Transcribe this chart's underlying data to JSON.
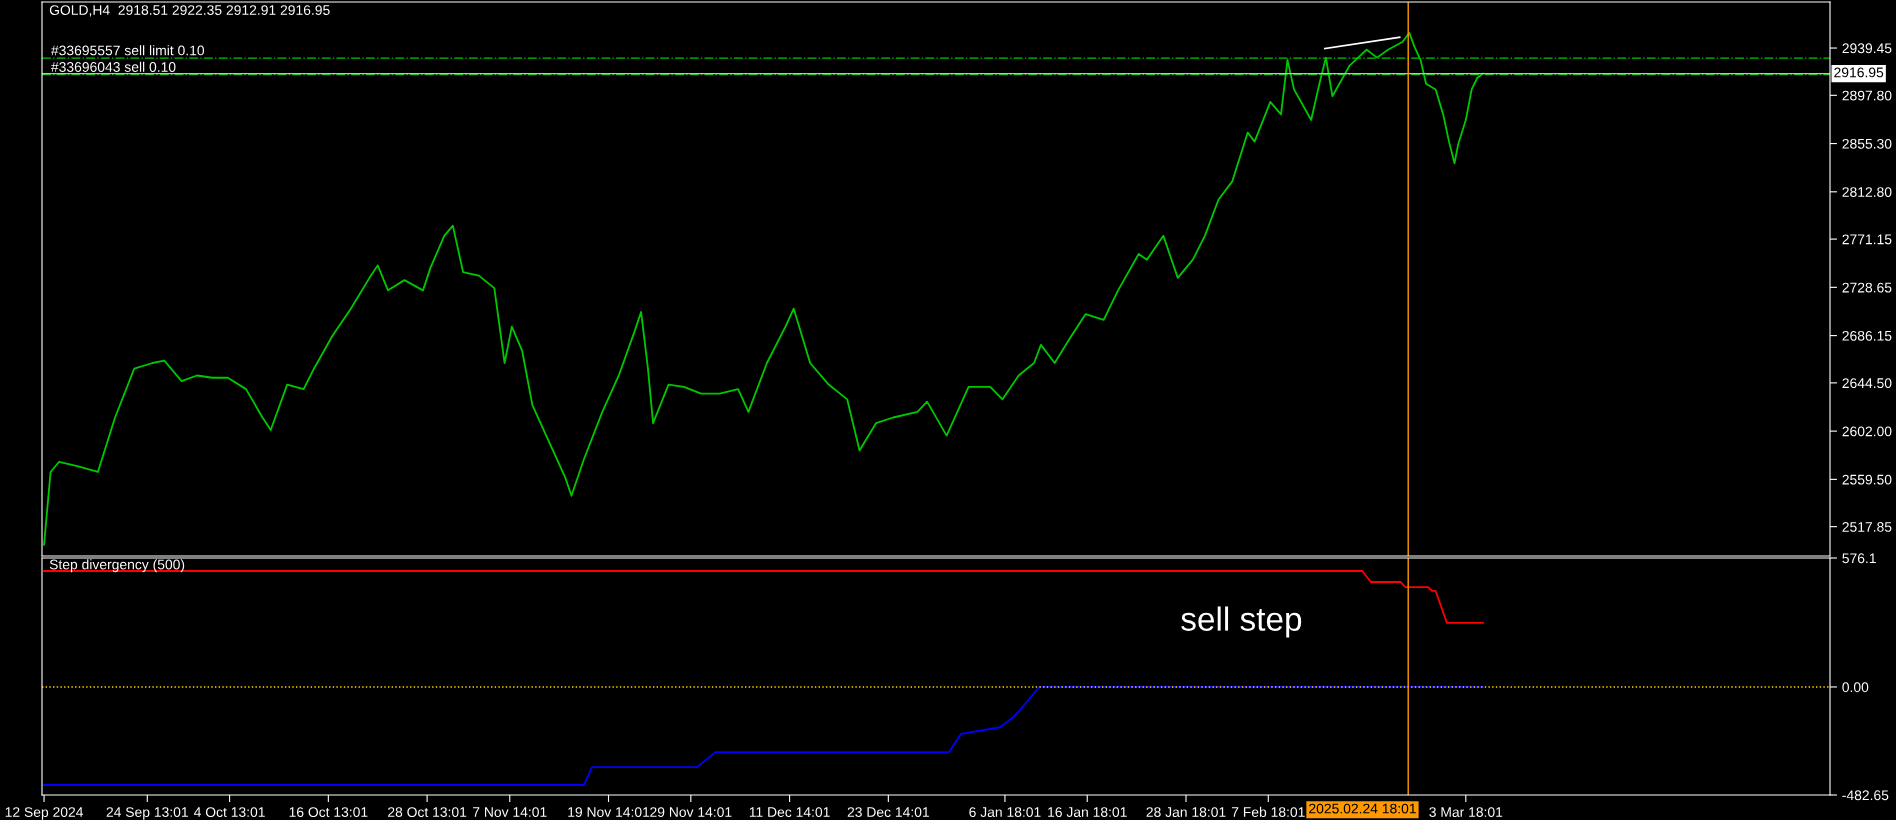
{
  "chart_data": [
    {
      "type": "line",
      "title": "GOLD,H4  2918.51 2922.35 2912.91 2916.95",
      "tick_labels": "y",
      "grid": false,
      "legend": false,
      "xlim": [
        "2024-09-11T18:00",
        "2025-04-17T00:00"
      ],
      "ylim": [
        2492,
        2980
      ],
      "yticks": [
        {
          "value": 2939.45,
          "label": "2939.45"
        },
        {
          "value": 2897.8,
          "label": "2897.80"
        },
        {
          "value": 2855.3,
          "label": "2855.30"
        },
        {
          "value": 2812.8,
          "label": "2812.80"
        },
        {
          "value": 2771.15,
          "label": "2771.15"
        },
        {
          "value": 2728.65,
          "label": "2728.65"
        },
        {
          "value": 2686.15,
          "label": "2686.15"
        },
        {
          "value": 2644.5,
          "label": "2644.50"
        },
        {
          "value": 2602.0,
          "label": "2602.00"
        },
        {
          "value": 2559.5,
          "label": "2559.50"
        },
        {
          "value": 2517.85,
          "label": "2517.85"
        }
      ],
      "series": [
        {
          "color": "#00c800",
          "x": [
            "2024-09-12T00:00",
            "2024-09-12T19:00",
            "2024-09-13T20:00",
            "2024-09-16T04:00",
            "2024-09-18T13:00",
            "2024-09-20T15:00",
            "2024-09-22T23:00",
            "2024-09-25T04:00",
            "2024-09-26T15:00",
            "2024-09-28T17:00",
            "2024-09-30T14:00",
            "2024-10-02T11:00",
            "2024-10-04T08:00",
            "2024-10-06T13:00",
            "2024-10-08T13:00",
            "2024-10-09T13:00",
            "2024-10-11T13:00",
            "2024-10-13T13:00",
            "2024-10-14T19:00",
            "2024-10-17T01:00",
            "2024-10-19T07:00",
            "2024-10-21T13:00",
            "2024-10-22T13:00",
            "2024-10-23T19:00",
            "2024-10-25T19:00",
            "2024-10-28T01:00",
            "2024-10-28T23:00",
            "2024-10-30T15:00",
            "2024-10-31T16:00",
            "2024-11-01T22:00",
            "2024-11-03T20:00",
            "2024-11-05T17:00",
            "2024-11-06T23:00",
            "2024-11-07T20:00",
            "2024-11-09T02:00",
            "2024-11-10T08:00",
            "2024-11-12T08:00",
            "2024-11-14T08:00",
            "2024-11-15T02:00",
            "2024-11-16T14:00",
            "2024-11-18T20:00",
            "2024-11-20T20:00",
            "2024-11-22T17:00",
            "2024-11-23T13:00",
            "2024-11-24T09:00",
            "2024-11-25T00:00",
            "2024-11-26T21:00",
            "2024-11-28T18:00",
            "2024-11-30T20:00",
            "2024-12-03T02:00",
            "2024-12-05T08:00",
            "2024-12-06T14:00",
            "2024-12-08T20:00",
            "2024-12-11T02:00",
            "2024-12-12T02:00",
            "2024-12-14T02:00",
            "2024-12-16T08:00",
            "2024-12-18T14:00",
            "2024-12-20T02:00",
            "2024-12-22T02:00",
            "2024-12-24T04:00",
            "2024-12-27T03:00",
            "2024-12-28T07:00",
            "2024-12-30T16:00",
            "2025-01-02T08:00",
            "2025-01-04T23:00",
            "2025-01-06T11:00",
            "2025-01-08T10:00",
            "2025-01-10T07:00",
            "2025-01-11T03:00",
            "2025-01-12T19:00",
            "2025-01-14T16:00",
            "2025-01-16T13:00",
            "2025-01-18T18:00",
            "2025-01-20T12:00",
            "2025-01-23T00:00",
            "2025-01-24T00:00",
            "2025-01-26T00:00",
            "2025-01-27T18:00",
            "2025-01-29T14:00",
            "2025-01-31T01:00",
            "2025-02-01T17:00",
            "2025-02-03T09:00",
            "2025-02-05T06:00",
            "2025-02-06T02:00",
            "2025-02-08T00:00",
            "2025-02-09T07:00",
            "2025-02-10T02:00",
            "2025-02-10T21:00",
            "2025-02-12T23:00",
            "2025-02-13T23:00",
            "2025-02-14T18:00",
            "2025-02-15T13:00",
            "2025-02-17T15:00",
            "2025-02-19T17:00",
            "2025-02-20T23:00",
            "2025-02-22T07:00",
            "2025-02-24T02:00",
            "2025-02-24T21:00",
            "2025-02-25T13:00",
            "2025-02-26T06:00",
            "2025-02-26T22:00",
            "2025-02-28T02:00",
            "2025-03-01T00:00",
            "2025-03-01T17:00",
            "2025-03-02T09:00",
            "2025-03-02T20:00",
            "2025-03-03T18:00",
            "2025-03-04T11:00",
            "2025-03-05T03:00",
            "2025-03-05T20:00"
          ],
          "values": [
            2502,
            2566,
            2575,
            2571,
            2566,
            2614,
            2657,
            2662,
            2664,
            2646,
            2651,
            2649,
            2649,
            2639,
            2614,
            2603,
            2643,
            2639,
            2657,
            2686,
            2710,
            2737,
            2748,
            2726,
            2735,
            2726,
            2746,
            2774,
            2783,
            2742,
            2739,
            2728,
            2662,
            2694,
            2673,
            2625,
            2593,
            2561,
            2545,
            2577,
            2619,
            2651,
            2689,
            2707,
            2657,
            2609,
            2643,
            2641,
            2635,
            2635,
            2639,
            2619,
            2662,
            2694,
            2710,
            2662,
            2643,
            2630,
            2585,
            2609,
            2614,
            2619,
            2628,
            2598,
            2641,
            2641,
            2630,
            2651,
            2662,
            2678,
            2662,
            2684,
            2705,
            2700,
            2726,
            2758,
            2753,
            2774,
            2737,
            2753,
            2774,
            2806,
            2822,
            2865,
            2857,
            2892,
            2881,
            2929,
            2903,
            2876,
            2908,
            2931,
            2897,
            2924,
            2938,
            2931,
            2938,
            2945,
            2953,
            2940,
            2929,
            2908,
            2903,
            2881,
            2857,
            2838,
            2855,
            2876,
            2903,
            2913,
            2917
          ]
        },
        {
          "color": "#ffffff",
          "x": [
            "2025-02-14T15:00",
            "2025-02-23T17:00"
          ],
          "values": [
            2939,
            2949
          ]
        }
      ],
      "ref_lines": [
        {
          "axis": "y",
          "value": 2930.6,
          "label": "#33695557 sell limit 0.10",
          "color": "#00c800",
          "line_style": "dashdot"
        },
        {
          "axis": "y",
          "value": 2916.0,
          "label": "#33696043 sell 0.10",
          "color": "#00c800",
          "line_style": "dashdot"
        },
        {
          "axis": "y",
          "value": 2916.95,
          "label": "2916.95",
          "color": "#c0c0c0",
          "line_style": "solid"
        },
        {
          "axis": "x",
          "value": "2025-02-24T18:01",
          "color": "#ff9900",
          "line_style": "solid"
        }
      ]
    },
    {
      "type": "line",
      "title": "Step divergency (500)",
      "grid": false,
      "legend": false,
      "xlim": [
        "2024-09-11T18:00",
        "2025-04-17T00:00"
      ],
      "ylim": [
        -482.65,
        576.1
      ],
      "yticks": [
        {
          "value": 576.1,
          "label": "576.1"
        },
        {
          "value": 0,
          "label": "0.00"
        },
        {
          "value": -482.65,
          "label": "-482.65"
        }
      ],
      "xticks": [
        {
          "value": "2024-09-12T00:00",
          "label": "12 Sep 2024"
        },
        {
          "value": "2024-09-24T13:01",
          "label": "24 Sep 13:01"
        },
        {
          "value": "2024-10-04T13:01",
          "label": "4 Oct 13:01"
        },
        {
          "value": "2024-10-16T13:01",
          "label": "16 Oct 13:01"
        },
        {
          "value": "2024-10-28T13:01",
          "label": "28 Oct 13:01"
        },
        {
          "value": "2024-11-07T14:01",
          "label": "7 Nov 14:01"
        },
        {
          "value": "2024-11-19T14:01",
          "label": "19 Nov 14:01"
        },
        {
          "value": "2024-11-29T14:01",
          "label": "29 Nov 14:01"
        },
        {
          "value": "2024-12-11T14:01",
          "label": "11 Dec 14:01"
        },
        {
          "value": "2024-12-23T14:01",
          "label": "23 Dec 14:01"
        },
        {
          "value": "2025-01-06T18:01",
          "label": "6 Jan 18:01"
        },
        {
          "value": "2025-01-16T18:01",
          "label": "16 Jan 18:01"
        },
        {
          "value": "2025-01-28T18:01",
          "label": "28 Jan 18:01"
        },
        {
          "value": "2025-02-07T18:01",
          "label": "7 Feb 18:01"
        },
        {
          "value": "2025-03-03T18:01",
          "label": "3 Mar 18:01"
        }
      ],
      "series": [
        {
          "color": "#ff0000",
          "x": [
            "2024-09-12T00:00",
            "2025-02-19T04:00",
            "2025-02-20T05:00",
            "2025-02-23T20:00",
            "2025-02-24T09:00",
            "2025-02-27T04:00",
            "2025-02-27T15:00",
            "2025-02-28T02:00",
            "2025-03-01T11:00",
            "2025-03-05T20:00"
          ],
          "values": [
            518,
            518,
            469,
            469,
            446,
            446,
            429,
            429,
            286,
            286
          ]
        },
        {
          "color": "#0000ff",
          "x": [
            "2024-09-12T00:00",
            "2024-11-16T14:00",
            "2024-11-17T14:00",
            "2024-11-30T08:00",
            "2024-12-02T14:00",
            "2024-12-30T23:00",
            "2025-01-01T10:00",
            "2025-01-06T04:00",
            "2025-01-07T14:00",
            "2025-01-08T10:00",
            "2025-01-10T22:00",
            "2025-03-05T20:00"
          ],
          "values": [
            -438,
            -438,
            -358,
            -358,
            -291,
            -291,
            -210,
            -180,
            -140,
            -110,
            0,
            0
          ]
        }
      ],
      "annotations": [
        "sell step"
      ],
      "ref_lines": [
        {
          "axis": "y",
          "value": 0,
          "color": "#ffd700",
          "line_style": "dotted"
        },
        {
          "axis": "x",
          "value": "2025-02-24T18:01",
          "label": "2025.02.24 18:01",
          "color": "#ff9900",
          "line_style": "solid"
        }
      ]
    }
  ]
}
